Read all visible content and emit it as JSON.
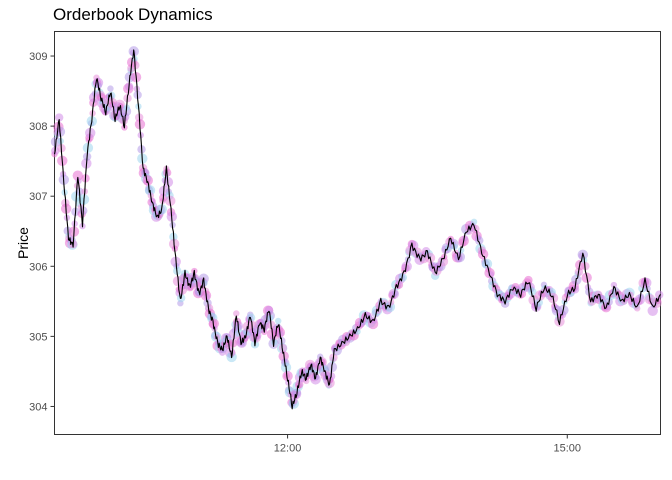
{
  "chart_data": {
    "type": "line",
    "title": "Orderbook Dynamics",
    "xlabel": "",
    "ylabel": "Price",
    "x_unit": "time of day",
    "xlim": [
      "09:30",
      "16:00"
    ],
    "ylim": [
      303.6,
      309.35
    ],
    "x_ticks": [
      {
        "x": "12:00",
        "label": "12:00"
      },
      {
        "x": "15:00",
        "label": "15:00"
      }
    ],
    "y_ticks": [
      304,
      305,
      306,
      307,
      308,
      309
    ],
    "grid": false,
    "legend": "none",
    "series": [
      {
        "kind": "price-line",
        "color": "#000000",
        "x": [
          "09:30",
          "09:33",
          "09:36",
          "09:39",
          "09:42",
          "09:45",
          "09:48",
          "09:51",
          "09:54",
          "09:57",
          "10:00",
          "10:03",
          "10:06",
          "10:09",
          "10:12",
          "10:15",
          "10:18",
          "10:21",
          "10:24",
          "10:27",
          "10:30",
          "10:33",
          "10:36",
          "10:39",
          "10:42",
          "10:45",
          "10:48",
          "10:51",
          "10:54",
          "10:57",
          "11:00",
          "11:03",
          "11:06",
          "11:09",
          "11:12",
          "11:15",
          "11:18",
          "11:21",
          "11:24",
          "11:27",
          "11:30",
          "11:33",
          "11:36",
          "11:39",
          "11:42",
          "11:45",
          "11:48",
          "11:51",
          "11:54",
          "11:57",
          "12:00",
          "12:03",
          "12:06",
          "12:09",
          "12:12",
          "12:15",
          "12:18",
          "12:21",
          "12:24",
          "12:27",
          "12:30",
          "12:35",
          "12:40",
          "12:45",
          "12:50",
          "12:55",
          "13:00",
          "13:05",
          "13:10",
          "13:15",
          "13:20",
          "13:25",
          "13:30",
          "13:35",
          "13:40",
          "13:45",
          "13:50",
          "13:55",
          "14:00",
          "14:05",
          "14:10",
          "14:15",
          "14:20",
          "14:25",
          "14:30",
          "14:35",
          "14:40",
          "14:45",
          "14:50",
          "14:55",
          "15:00",
          "15:05",
          "15:10",
          "15:15",
          "15:20",
          "15:25",
          "15:30",
          "15:35",
          "15:40",
          "15:45",
          "15:50",
          "15:55",
          "16:00"
        ],
        "y": [
          307.6,
          308.1,
          307.2,
          306.4,
          306.3,
          307.3,
          306.6,
          307.6,
          308.1,
          308.7,
          308.4,
          308.2,
          308.5,
          308.1,
          308.3,
          308.0,
          308.6,
          309.1,
          308.3,
          307.4,
          307.2,
          306.9,
          306.7,
          306.8,
          307.4,
          306.8,
          306.1,
          305.5,
          305.9,
          305.7,
          305.9,
          305.6,
          305.8,
          305.4,
          305.2,
          304.9,
          304.8,
          305.0,
          304.7,
          305.3,
          304.9,
          305.0,
          305.3,
          304.9,
          305.2,
          305.1,
          305.4,
          304.9,
          305.2,
          304.8,
          304.4,
          304.0,
          304.2,
          304.5,
          304.4,
          304.6,
          304.4,
          304.7,
          304.5,
          304.3,
          304.8,
          304.9,
          305.0,
          305.1,
          305.3,
          305.2,
          305.5,
          305.4,
          305.7,
          305.9,
          306.3,
          306.1,
          306.2,
          305.9,
          306.1,
          306.4,
          306.1,
          306.5,
          306.6,
          306.2,
          305.9,
          305.6,
          305.5,
          305.7,
          305.6,
          305.8,
          305.4,
          305.7,
          305.6,
          305.2,
          305.6,
          305.7,
          306.2,
          305.5,
          305.6,
          305.4,
          305.7,
          305.5,
          305.6,
          305.4,
          305.8,
          305.4,
          305.6
        ]
      }
    ]
  }
}
